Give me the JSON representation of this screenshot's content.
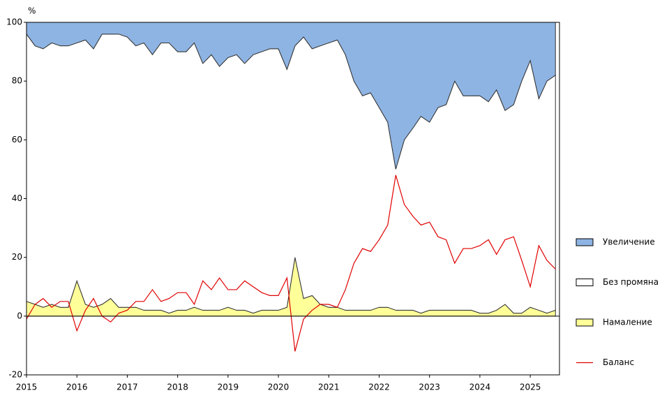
{
  "chart_data": {
    "type": "area",
    "y_label": "%",
    "x": [
      2015,
      2015.17,
      2015.33,
      2015.5,
      2015.67,
      2015.83,
      2016,
      2016.17,
      2016.33,
      2016.5,
      2016.67,
      2016.83,
      2017,
      2017.17,
      2017.33,
      2017.5,
      2017.67,
      2017.83,
      2018,
      2018.17,
      2018.33,
      2018.5,
      2018.67,
      2018.83,
      2019,
      2019.17,
      2019.33,
      2019.5,
      2019.67,
      2019.83,
      2020,
      2020.17,
      2020.33,
      2020.5,
      2020.67,
      2020.83,
      2021,
      2021.17,
      2021.33,
      2021.5,
      2021.67,
      2021.83,
      2022,
      2022.17,
      2022.33,
      2022.5,
      2022.67,
      2022.83,
      2023,
      2023.17,
      2023.33,
      2023.5,
      2023.67,
      2023.83,
      2024,
      2024.17,
      2024.33,
      2024.5,
      2024.67,
      2024.83,
      2025,
      2025.17,
      2025.33,
      2025.5
    ],
    "series": [
      {
        "name": "Увеличение",
        "type": "area",
        "color": "#8eb4e3",
        "values": [
          4,
          8,
          9,
          7,
          8,
          8,
          7,
          6,
          9,
          4,
          4,
          4,
          5,
          8,
          7,
          11,
          7,
          7,
          10,
          10,
          7,
          14,
          11,
          15,
          12,
          11,
          14,
          11,
          10,
          9,
          9,
          16,
          8,
          5,
          9,
          8,
          7,
          6,
          11,
          20,
          25,
          24,
          29,
          34,
          50,
          40,
          36,
          32,
          34,
          29,
          28,
          20,
          25,
          25,
          25,
          27,
          23,
          30,
          28,
          20,
          13,
          26,
          20,
          18
        ]
      },
      {
        "name": "Без промяна",
        "type": "area",
        "color": "#ffffff",
        "values": [
          91,
          88,
          88,
          89,
          89,
          89,
          81,
          90,
          88,
          92,
          90,
          93,
          92,
          89,
          91,
          87,
          91,
          92,
          88,
          88,
          90,
          84,
          87,
          83,
          85,
          87,
          84,
          88,
          88,
          89,
          89,
          81,
          72,
          89,
          84,
          88,
          90,
          91,
          87,
          78,
          73,
          74,
          68,
          63,
          48,
          58,
          62,
          67,
          64,
          69,
          70,
          78,
          73,
          73,
          74,
          72,
          75,
          66,
          71,
          79,
          84,
          72,
          79,
          80
        ]
      },
      {
        "name": "Намаление",
        "type": "area",
        "color": "#ffff99",
        "values": [
          5,
          4,
          3,
          4,
          3,
          3,
          12,
          4,
          3,
          4,
          6,
          3,
          3,
          3,
          2,
          2,
          2,
          1,
          2,
          2,
          3,
          2,
          2,
          2,
          3,
          2,
          2,
          1,
          2,
          2,
          2,
          3,
          20,
          6,
          7,
          4,
          3,
          3,
          2,
          2,
          2,
          2,
          3,
          3,
          2,
          2,
          2,
          1,
          2,
          2,
          2,
          2,
          2,
          2,
          1,
          1,
          2,
          4,
          1,
          1,
          3,
          2,
          1,
          2
        ]
      },
      {
        "name": "Баланс",
        "type": "line",
        "color": "#e00000",
        "values": [
          -1,
          4,
          6,
          3,
          5,
          5,
          -5,
          2,
          6,
          0,
          -2,
          1,
          2,
          5,
          5,
          9,
          5,
          6,
          8,
          8,
          4,
          12,
          9,
          13,
          9,
          9,
          12,
          10,
          8,
          7,
          7,
          13,
          -12,
          -1,
          2,
          4,
          4,
          3,
          9,
          18,
          23,
          22,
          26,
          31,
          48,
          38,
          34,
          31,
          32,
          27,
          26,
          18,
          23,
          23,
          24,
          26,
          21,
          26,
          27,
          19,
          10,
          24,
          19,
          16
        ]
      }
    ],
    "xlim": [
      2015,
      2025.58
    ],
    "xticks": [
      2015,
      2016,
      2017,
      2018,
      2019,
      2020,
      2021,
      2022,
      2023,
      2024,
      2025
    ],
    "ylim": [
      -20,
      100
    ],
    "yticks": [
      -20,
      0,
      20,
      40,
      60,
      80,
      100
    ],
    "legend": "right"
  }
}
